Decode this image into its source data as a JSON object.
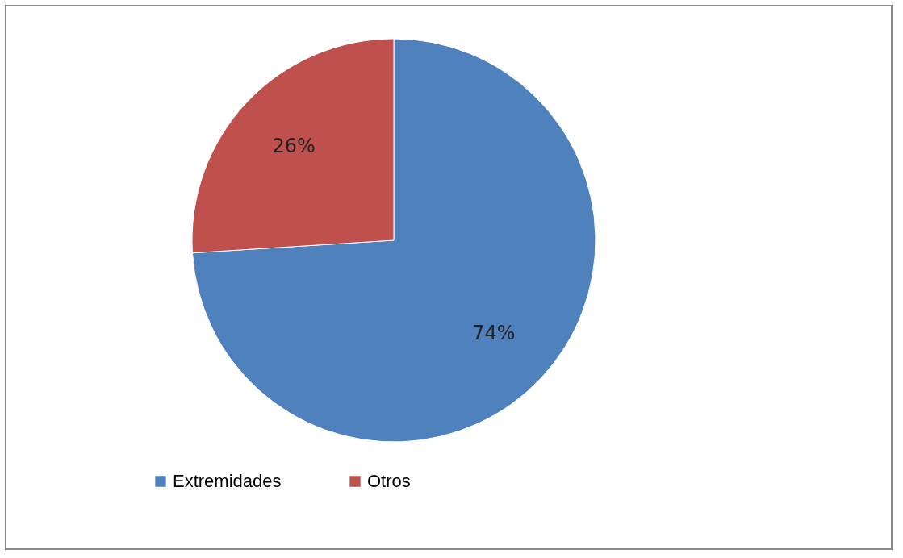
{
  "chart_data": {
    "type": "pie",
    "categories": [
      "Extremidades",
      "Otros"
    ],
    "values": [
      74,
      26
    ],
    "colors": [
      "#4f81bd",
      "#c0504d"
    ],
    "value_labels": [
      "74%",
      "26%"
    ],
    "legend": "bottom"
  }
}
